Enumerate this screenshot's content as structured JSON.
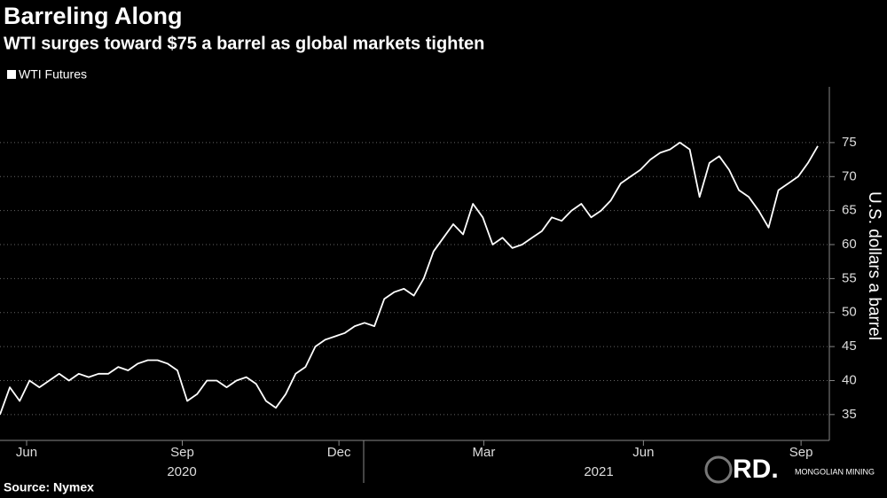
{
  "chart_data": {
    "type": "line",
    "title": "Barreling Along",
    "subtitle": "WTI surges toward $75 a barrel as global markets tighten",
    "y_label": "U.S. dollars a barrel",
    "source": "Source: Nymex",
    "watermark": {
      "logo": "RD.",
      "text": "MONGOLIAN MINING"
    },
    "series": [
      {
        "name": "WTI Futures",
        "color": "#ffffff",
        "values": [
          35,
          39,
          37,
          40,
          39,
          40,
          41,
          40,
          41,
          40.5,
          41,
          41,
          42,
          41.5,
          42.5,
          43,
          43,
          42.5,
          41.5,
          37,
          38,
          40,
          40,
          39,
          40,
          40.5,
          39.5,
          37,
          36,
          38,
          41,
          42,
          45,
          46,
          46.5,
          47,
          48,
          48.5,
          48,
          52,
          53,
          53.5,
          52.5,
          55,
          59,
          61,
          63,
          61.5,
          66,
          64,
          60,
          61,
          59.5,
          60,
          61,
          62,
          64,
          63.5,
          65,
          66,
          64,
          65,
          66.5,
          69,
          70,
          71,
          72.5,
          73.5,
          74,
          75,
          74,
          67,
          72,
          73,
          71,
          68,
          67,
          65,
          62.5,
          68,
          69,
          70,
          72,
          74.5
        ]
      }
    ],
    "xlim": [
      0,
      83
    ],
    "xticks": [
      {
        "value": 2.7,
        "label": "Jun"
      },
      {
        "value": 18.5,
        "label": "Sep"
      },
      {
        "value": 34.4,
        "label": "Dec"
      },
      {
        "value": 49.1,
        "label": "Mar"
      },
      {
        "value": 65.3,
        "label": "Jun"
      },
      {
        "value": 81.3,
        "label": "Sep"
      }
    ],
    "years": [
      "2020",
      "2021"
    ],
    "ylim": [
      31.2,
      83.2
    ],
    "yticks": [
      35,
      40,
      45,
      50,
      55,
      60,
      65,
      70,
      75
    ],
    "grid": true,
    "legend": "top-left"
  }
}
